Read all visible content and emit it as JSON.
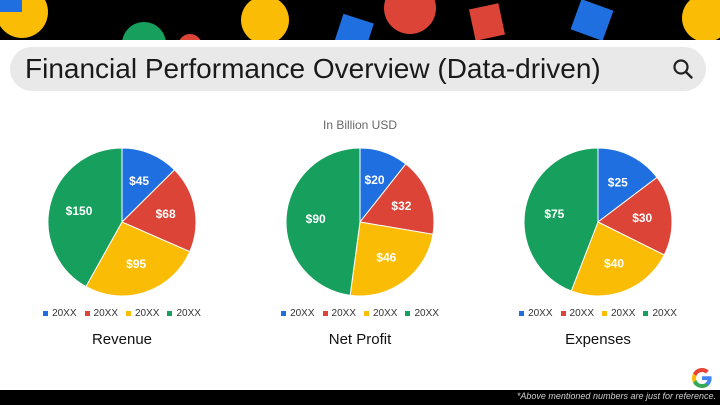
{
  "header": {
    "title": "Financial Performance Overview (Data-driven)"
  },
  "unit_note": "In Billion USD",
  "footnote": "*Above mentioned numbers are just for reference.",
  "colors": {
    "blue": "#1f6fe0",
    "red": "#db4437",
    "yellow": "#fbbc05",
    "green": "#17a05d"
  },
  "icons": {
    "search": "search-icon",
    "logo": "google-g-logo"
  },
  "chart_data": [
    {
      "type": "pie",
      "title": "Revenue",
      "categories": [
        "20XX",
        "20XX",
        "20XX",
        "20XX"
      ],
      "values": [
        45,
        68,
        95,
        150
      ],
      "labels": [
        "$45",
        "$68",
        "$95",
        "$150"
      ],
      "colors": [
        "#1f6fe0",
        "#db4437",
        "#fbbc05",
        "#17a05d"
      ],
      "legend": "bottom"
    },
    {
      "type": "pie",
      "title": "Net Profit",
      "categories": [
        "20XX",
        "20XX",
        "20XX",
        "20XX"
      ],
      "values": [
        20,
        32,
        46,
        90
      ],
      "labels": [
        "$20",
        "$32",
        "$46",
        "$90"
      ],
      "colors": [
        "#1f6fe0",
        "#db4437",
        "#fbbc05",
        "#17a05d"
      ],
      "legend": "bottom"
    },
    {
      "type": "pie",
      "title": "Expenses",
      "categories": [
        "20XX",
        "20XX",
        "20XX",
        "20XX"
      ],
      "values": [
        25,
        30,
        40,
        75
      ],
      "labels": [
        "$25",
        "$30",
        "$40",
        "$75"
      ],
      "colors": [
        "#1f6fe0",
        "#db4437",
        "#fbbc05",
        "#17a05d"
      ],
      "legend": "bottom"
    }
  ]
}
